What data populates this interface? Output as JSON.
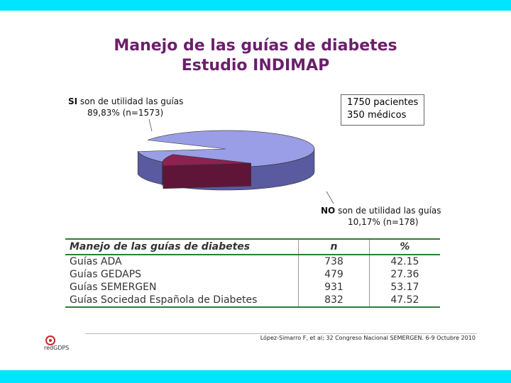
{
  "title_line1": "Manejo de las guías de diabetes",
  "title_line2": "Estudio INDIMAP",
  "pie_labels": {
    "si_bold": "SI",
    "si_rest": " son de utilidad las guías",
    "si_value": "89,83% (n=1573)",
    "no_bold": "NO",
    "no_rest": " son de utilidad las guías",
    "no_value": "10,17% (n=178)"
  },
  "info_box": {
    "line1": "1750 pacientes",
    "line2": "350 médicos"
  },
  "table": {
    "headers": [
      "Manejo de las guías de diabetes",
      "n",
      "%"
    ],
    "rows": [
      [
        "Guías ADA",
        "738",
        "42.15"
      ],
      [
        "Guías GEDAPS",
        "479",
        "27.36"
      ],
      [
        "Guías SEMERGEN",
        "931",
        "53.17"
      ],
      [
        "Guías Sociedad Española de Diabetes",
        "832",
        "47.52"
      ]
    ]
  },
  "logo_text": "redGDPS",
  "citation": "López-Simarro F, et al; 32 Congreso Nacional SEMERGEN. 6-9 Octubre 2010",
  "colors": {
    "si_slice": "#9a9ee6",
    "si_side": "#5a5aa0",
    "no_slice": "#8b2252",
    "no_side": "#5e1538",
    "title": "#6b1f6b",
    "band": "#00e5ff"
  },
  "chart_data": {
    "type": "pie",
    "categories": [
      "SI son de utilidad las guías",
      "NO son de utilidad las guías"
    ],
    "values": [
      89.83,
      10.17
    ],
    "counts": [
      1573,
      178
    ],
    "title": "Manejo de las guías de diabetes"
  }
}
